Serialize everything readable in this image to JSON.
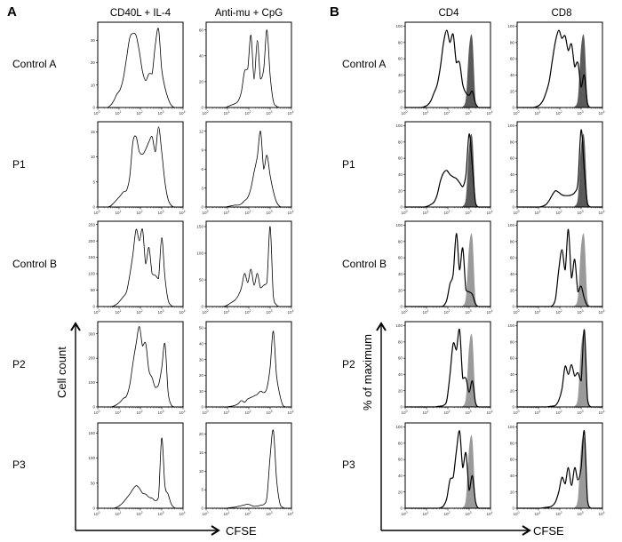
{
  "panel_letters": {
    "a": "A",
    "b": "B"
  },
  "columns": {
    "a1": "CD40L + IL-4",
    "a2": "Anti-mu + CpG",
    "b1": "CD4",
    "b2": "CD8"
  },
  "rows": [
    "Control A",
    "P1",
    "Control B",
    "P2",
    "P3"
  ],
  "axes": {
    "a_y": "Cell count",
    "b_y": "% of maximum",
    "a_x": "CFSE",
    "b_x": "CFSE"
  },
  "colors": {
    "line": "#000000",
    "reference_fill_dark": "#5a5a5a",
    "reference_fill_light": "#9a9a9a"
  },
  "chart_data": {
    "type": "line",
    "x_scale": "log",
    "x_ticks": [
      "10^0",
      "10^1",
      "10^2",
      "10^3",
      "10^4"
    ],
    "xlim": [
      1,
      10000
    ],
    "x": [
      1,
      1.41,
      2.0,
      2.82,
      3.98,
      5.62,
      7.94,
      11.2,
      15.8,
      22.4,
      31.6,
      44.7,
      63.1,
      89.1,
      126,
      178,
      251,
      355,
      501,
      708,
      1000,
      1413,
      1995,
      2818,
      3981,
      5623,
      7943,
      10000
    ],
    "reference_histogram": [
      0,
      0,
      0,
      0,
      0,
      0,
      0,
      0,
      0,
      0,
      0,
      0,
      0,
      0,
      0,
      0,
      0,
      0,
      1,
      12,
      75,
      85,
      8,
      0,
      0,
      0,
      0,
      0
    ],
    "panels": [
      {
        "panel": "A",
        "column": "CD40L + IL-4",
        "row": "Control A",
        "ylim": [
          0,
          38
        ],
        "yticks": [
          0,
          10,
          20,
          30
        ],
        "y": [
          0,
          0,
          0,
          0,
          1,
          3,
          6,
          8,
          13,
          22,
          31,
          33,
          32,
          25,
          16,
          12,
          15,
          15,
          28,
          35,
          17,
          9,
          4,
          1,
          0,
          0,
          0,
          0
        ]
      },
      {
        "panel": "A",
        "column": "Anti-mu + CpG",
        "row": "Control A",
        "ylim": [
          0,
          66
        ],
        "yticks": [
          0,
          20,
          40,
          60
        ],
        "y": [
          0,
          0,
          0,
          0,
          0,
          0,
          0,
          1,
          2,
          3,
          5,
          12,
          28,
          30,
          56,
          22,
          52,
          22,
          30,
          60,
          25,
          5,
          1,
          0,
          0,
          0,
          0,
          0
        ]
      },
      {
        "panel": "A",
        "column": "CD40L + IL-4",
        "row": "P1",
        "ylim": [
          0,
          17
        ],
        "yticks": [
          0,
          5,
          10,
          15
        ],
        "y": [
          0,
          0,
          0,
          0,
          0.2,
          0.8,
          1.5,
          2.2,
          3,
          3.3,
          6,
          13,
          14,
          11,
          10.5,
          11.5,
          13,
          14,
          11,
          16,
          11,
          5,
          1.5,
          0.3,
          0,
          0,
          0,
          0
        ]
      },
      {
        "panel": "A",
        "column": "Anti-mu + CpG",
        "row": "P1",
        "ylim": [
          0,
          13.5
        ],
        "yticks": [
          0,
          3,
          6,
          9,
          12
        ],
        "y": [
          0,
          0,
          0,
          0,
          0,
          0,
          0,
          0.1,
          0.2,
          0.3,
          0.3,
          0.5,
          1,
          1.5,
          3,
          5.6,
          8,
          12,
          6,
          8.2,
          5,
          2.5,
          0.8,
          0.1,
          0,
          0,
          0,
          0
        ]
      },
      {
        "panel": "A",
        "column": "CD40L + IL-4",
        "row": "Control B",
        "ylim": [
          0,
          260
        ],
        "yticks": [
          0,
          50,
          100,
          150,
          200,
          250
        ],
        "y": [
          0,
          0,
          0,
          0,
          0,
          2,
          8,
          18,
          30,
          45,
          95,
          160,
          235,
          200,
          235,
          130,
          180,
          100,
          95,
          85,
          210,
          90,
          20,
          3,
          0,
          0,
          0,
          0
        ]
      },
      {
        "panel": "A",
        "column": "Anti-mu + CpG",
        "row": "Control B",
        "ylim": [
          0,
          160
        ],
        "yticks": [
          0,
          50,
          100,
          150
        ],
        "y": [
          0,
          0,
          0,
          0,
          0,
          0,
          1,
          4,
          8,
          12,
          20,
          35,
          62,
          45,
          70,
          40,
          62,
          35,
          40,
          45,
          150,
          20,
          3,
          0,
          0,
          0,
          0,
          0
        ]
      },
      {
        "panel": "A",
        "column": "CD40L + IL-4",
        "row": "P2",
        "ylim": [
          0,
          350
        ],
        "yticks": [
          0,
          100,
          200,
          300
        ],
        "y": [
          0,
          0,
          0,
          0,
          0,
          3,
          10,
          20,
          35,
          45,
          90,
          180,
          260,
          330,
          250,
          260,
          150,
          120,
          80,
          90,
          160,
          260,
          60,
          8,
          0,
          0,
          0,
          0
        ]
      },
      {
        "panel": "A",
        "column": "Anti-mu + CpG",
        "row": "P2",
        "ylim": [
          0,
          54
        ],
        "yticks": [
          0,
          10,
          20,
          30,
          40,
          50
        ],
        "y": [
          0,
          0,
          0,
          0,
          0,
          0,
          0,
          0.2,
          0.5,
          1,
          2,
          4,
          3,
          5,
          6,
          7,
          8,
          10,
          9,
          12,
          25,
          48,
          20,
          8,
          1,
          0,
          0,
          0
        ]
      },
      {
        "panel": "A",
        "column": "CD40L + IL-4",
        "row": "P3",
        "ylim": [
          0,
          170
        ],
        "yticks": [
          0,
          50,
          100,
          150
        ],
        "y": [
          0,
          0,
          0,
          0,
          0,
          0,
          2,
          6,
          12,
          20,
          28,
          38,
          45,
          40,
          30,
          28,
          22,
          20,
          15,
          22,
          140,
          45,
          28,
          8,
          1,
          0,
          0,
          0
        ]
      },
      {
        "panel": "A",
        "column": "Anti-mu + CpG",
        "row": "P3",
        "ylim": [
          0,
          23
        ],
        "yticks": [
          0,
          5,
          10,
          15,
          20
        ],
        "y": [
          0,
          0,
          0,
          0,
          0,
          0,
          0,
          0.1,
          0.2,
          0.3,
          0.5,
          0.7,
          0.9,
          1.1,
          0.8,
          0.5,
          0.6,
          0.8,
          1,
          3,
          14,
          21,
          8,
          1.5,
          0.2,
          0,
          0,
          0
        ]
      },
      {
        "panel": "B",
        "column": "CD4",
        "row": "Control A",
        "ylim": [
          0,
          105
        ],
        "yticks": [
          0,
          20,
          40,
          60,
          80,
          100
        ],
        "reference": "dark",
        "y": [
          0,
          0,
          0,
          0,
          0,
          0,
          1,
          3,
          8,
          18,
          28,
          50,
          80,
          95,
          80,
          90,
          55,
          55,
          28,
          18,
          15,
          20,
          5,
          0,
          0,
          0,
          0,
          0
        ]
      },
      {
        "panel": "B",
        "column": "CD8",
        "row": "Control A",
        "ylim": [
          0,
          105
        ],
        "yticks": [
          0,
          20,
          40,
          60,
          80,
          100
        ],
        "reference": "dark",
        "y": [
          0,
          0,
          0,
          0,
          0,
          0,
          1,
          3,
          8,
          18,
          32,
          58,
          82,
          95,
          85,
          88,
          70,
          78,
          50,
          55,
          25,
          40,
          5,
          0,
          0,
          0,
          0,
          0
        ]
      },
      {
        "panel": "B",
        "column": "CD4",
        "row": "P1",
        "ylim": [
          0,
          105
        ],
        "yticks": [
          0,
          20,
          40,
          60,
          80,
          100
        ],
        "reference": "dark",
        "y": [
          0,
          0,
          0,
          0,
          0,
          0,
          0,
          1,
          3,
          6,
          15,
          32,
          42,
          45,
          40,
          37,
          35,
          30,
          25,
          40,
          90,
          50,
          5,
          0,
          0,
          0,
          0,
          0
        ]
      },
      {
        "panel": "B",
        "column": "CD8",
        "row": "P1",
        "ylim": [
          0,
          105
        ],
        "yticks": [
          0,
          20,
          40,
          60,
          80,
          100
        ],
        "reference": "dark",
        "y": [
          0,
          0,
          0,
          0,
          0,
          0,
          0,
          0,
          1,
          3,
          8,
          15,
          20,
          18,
          15,
          14,
          14,
          15,
          18,
          30,
          95,
          45,
          4,
          0,
          0,
          0,
          0,
          0
        ]
      },
      {
        "panel": "B",
        "column": "CD4",
        "row": "Control B",
        "ylim": [
          0,
          105
        ],
        "yticks": [
          0,
          20,
          40,
          60,
          80,
          100
        ],
        "reference": "light",
        "y": [
          0,
          0,
          0,
          0,
          0,
          0,
          0,
          0,
          0,
          0,
          0,
          0,
          1,
          8,
          28,
          40,
          90,
          45,
          72,
          20,
          18,
          15,
          3,
          0,
          0,
          0,
          0,
          0
        ]
      },
      {
        "panel": "B",
        "column": "CD8",
        "row": "Control B",
        "ylim": [
          0,
          105
        ],
        "yticks": [
          0,
          20,
          40,
          60,
          80,
          100
        ],
        "reference": "light",
        "y": [
          0,
          0,
          0,
          0,
          0,
          0,
          0,
          0,
          0,
          0,
          0,
          1,
          10,
          45,
          70,
          45,
          95,
          35,
          58,
          18,
          25,
          10,
          1,
          0,
          0,
          0,
          0,
          0
        ]
      },
      {
        "panel": "B",
        "column": "CD4",
        "row": "P2",
        "ylim": [
          0,
          105
        ],
        "yticks": [
          0,
          20,
          40,
          60,
          80,
          100
        ],
        "reference": "light",
        "y": [
          0,
          0,
          0,
          0,
          0,
          0,
          0,
          0,
          0,
          0,
          0.5,
          1,
          2,
          8,
          40,
          78,
          70,
          95,
          35,
          35,
          18,
          32,
          5,
          0,
          0,
          0,
          0,
          0
        ]
      },
      {
        "panel": "B",
        "column": "CD8",
        "row": "P2",
        "ylim": [
          0,
          105
        ],
        "yticks": [
          0,
          20,
          40,
          60,
          80,
          100
        ],
        "reference": "light",
        "y": [
          0,
          0,
          0,
          0,
          0,
          0,
          0,
          0,
          0,
          0,
          0.5,
          1,
          2,
          8,
          22,
          50,
          40,
          52,
          38,
          42,
          32,
          95,
          10,
          0,
          0,
          0,
          0,
          0
        ]
      },
      {
        "panel": "B",
        "column": "CD4",
        "row": "P3",
        "ylim": [
          0,
          105
        ],
        "yticks": [
          0,
          20,
          40,
          60,
          80,
          100
        ],
        "reference": "light",
        "y": [
          0,
          0,
          0,
          0,
          0,
          0,
          0,
          0,
          0,
          0,
          0,
          0.5,
          3,
          12,
          35,
          38,
          70,
          95,
          50,
          68,
          22,
          40,
          8,
          0,
          0,
          0,
          0,
          0
        ]
      },
      {
        "panel": "B",
        "column": "CD8",
        "row": "P3",
        "ylim": [
          0,
          105
        ],
        "yticks": [
          0,
          20,
          40,
          60,
          80,
          100
        ],
        "reference": "light",
        "y": [
          0,
          0,
          0,
          0,
          0,
          0,
          0,
          0,
          0.5,
          1,
          1.5,
          3,
          8,
          20,
          38,
          30,
          50,
          28,
          50,
          35,
          50,
          95,
          10,
          0,
          0,
          0,
          0,
          0
        ]
      }
    ]
  }
}
